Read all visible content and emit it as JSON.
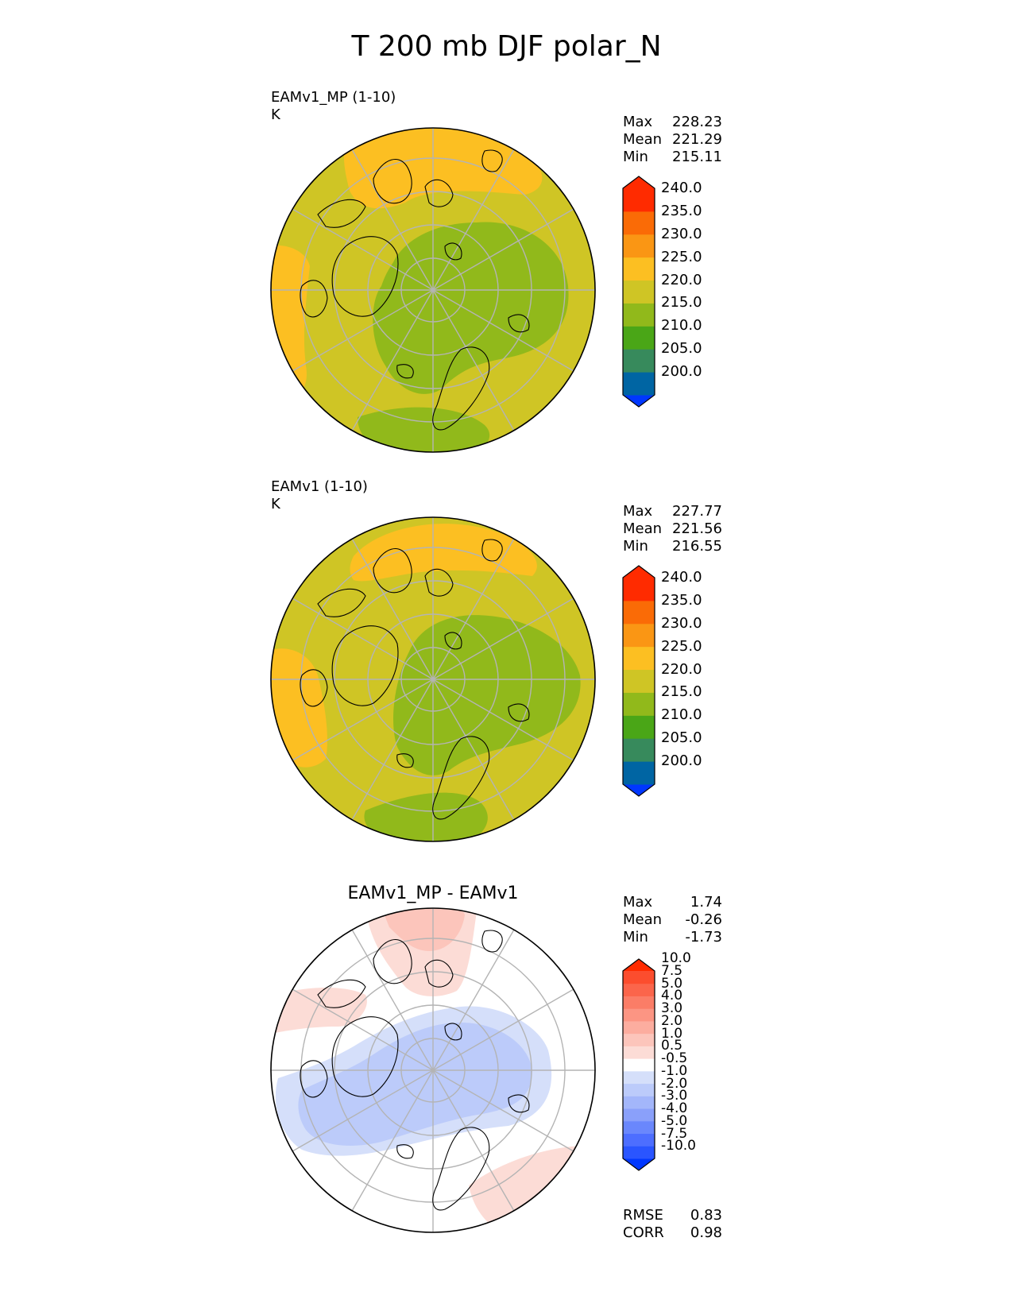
{
  "title": "T 200 mb DJF polar_N",
  "colors": {
    "t_levels": [
      "#0037ff",
      "#0065a3",
      "#378a5c",
      "#4aa617",
      "#91b91b",
      "#cfc525",
      "#fcbf22",
      "#fa9614",
      "#fa6b06",
      "#ff2b00",
      "#ff2b00"
    ],
    "diff_levels": [
      "#0037ff",
      "#2a55ff",
      "#4d6eff",
      "#6a87fc",
      "#8aa0fa",
      "#a3b6fa",
      "#bccbfa",
      "#d5dffa",
      "#ffffff",
      "#fcdcd6",
      "#fcc5bb",
      "#fcad9f",
      "#fc9583",
      "#fb7d67",
      "#fb654b",
      "#fc4d2e",
      "#ff2b00"
    ],
    "coast": "#000000",
    "grid": "#b4b4b4"
  },
  "panels": [
    {
      "name": "EAMv1_MP (1-10)",
      "units": "K",
      "stats": [
        {
          "label": "Max",
          "value": "228.23"
        },
        {
          "label": "Mean",
          "value": "221.29"
        },
        {
          "label": "Min",
          "value": "215.11"
        }
      ]
    },
    {
      "name": "EAMv1 (1-10)",
      "units": "K",
      "stats": [
        {
          "label": "Max",
          "value": "227.77"
        },
        {
          "label": "Mean",
          "value": "221.56"
        },
        {
          "label": "Min",
          "value": "216.55"
        }
      ]
    },
    {
      "name": "EAMv1_MP - EAMv1",
      "stats": [
        {
          "label": "Max",
          "value": "1.74"
        },
        {
          "label": "Mean",
          "value": "-0.26"
        },
        {
          "label": "Min",
          "value": "-1.73"
        }
      ],
      "metrics": [
        {
          "label": "RMSE",
          "value": "0.83"
        },
        {
          "label": "CORR",
          "value": "0.98"
        }
      ]
    }
  ],
  "chart_data": [
    {
      "type": "heatmap",
      "projection": "north polar stereographic",
      "title": "EAMv1_MP (1-10)",
      "units": "K",
      "colorbar_levels": [
        200,
        205,
        210,
        215,
        220,
        225,
        230,
        235,
        240
      ],
      "colorbar_ticks": [
        "200.0",
        "205.0",
        "210.0",
        "215.0",
        "220.0",
        "225.0",
        "230.0",
        "235.0",
        "240.0"
      ],
      "extend": "both",
      "max": 228.23,
      "mean": 221.29,
      "min": 215.11
    },
    {
      "type": "heatmap",
      "projection": "north polar stereographic",
      "title": "EAMv1 (1-10)",
      "units": "K",
      "colorbar_levels": [
        200,
        205,
        210,
        215,
        220,
        225,
        230,
        235,
        240
      ],
      "colorbar_ticks": [
        "200.0",
        "205.0",
        "210.0",
        "215.0",
        "220.0",
        "225.0",
        "230.0",
        "235.0",
        "240.0"
      ],
      "extend": "both",
      "max": 227.77,
      "mean": 221.56,
      "min": 216.55
    },
    {
      "type": "heatmap",
      "projection": "north polar stereographic",
      "title": "EAMv1_MP - EAMv1",
      "colorbar_levels": [
        -10,
        -7.5,
        -5,
        -4,
        -3,
        -2,
        -1,
        -0.5,
        0.5,
        1,
        2,
        3,
        4,
        5,
        7.5,
        10
      ],
      "colorbar_ticks": [
        "-10.0",
        "-7.5",
        "-5.0",
        "-4.0",
        "-3.0",
        "-2.0",
        "-1.0",
        "-0.5",
        "0.5",
        "1.0",
        "2.0",
        "3.0",
        "4.0",
        "5.0",
        "7.5",
        "10.0"
      ],
      "extend": "both",
      "max": 1.74,
      "mean": -0.26,
      "min": -1.73,
      "rmse": 0.83,
      "corr": 0.98
    }
  ]
}
